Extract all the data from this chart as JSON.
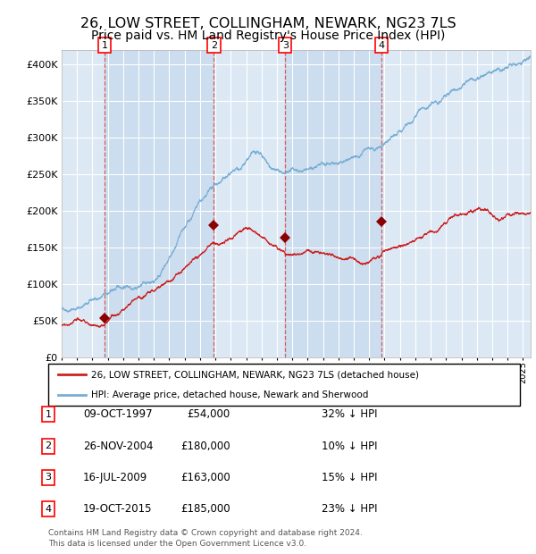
{
  "title": "26, LOW STREET, COLLINGHAM, NEWARK, NG23 7LS",
  "subtitle": "Price paid vs. HM Land Registry's House Price Index (HPI)",
  "title_fontsize": 11.5,
  "subtitle_fontsize": 10,
  "hpi_color": "#7aaed4",
  "price_color": "#cc2222",
  "marker_color": "#8b0000",
  "bg_color": "#dce9f5",
  "plot_bg": "#ffffff",
  "grid_color": "#ffffff",
  "ylim": [
    0,
    420000
  ],
  "yticks": [
    0,
    50000,
    100000,
    150000,
    200000,
    250000,
    300000,
    350000,
    400000
  ],
  "legend_label_red": "26, LOW STREET, COLLINGHAM, NEWARK, NG23 7LS (detached house)",
  "legend_label_blue": "HPI: Average price, detached house, Newark and Sherwood",
  "transactions": [
    {
      "num": 1,
      "date": "09-OCT-1997",
      "price": 54000,
      "hpi_pct": "32% ↓ HPI",
      "year_x": 1997.78
    },
    {
      "num": 2,
      "date": "26-NOV-2004",
      "price": 180000,
      "hpi_pct": "10% ↓ HPI",
      "year_x": 2004.9
    },
    {
      "num": 3,
      "date": "16-JUL-2009",
      "price": 163000,
      "hpi_pct": "15% ↓ HPI",
      "year_x": 2009.54
    },
    {
      "num": 4,
      "date": "19-OCT-2015",
      "price": 185000,
      "hpi_pct": "23% ↓ HPI",
      "year_x": 2015.8
    }
  ],
  "footnote1": "Contains HM Land Registry data © Crown copyright and database right 2024.",
  "footnote2": "This data is licensed under the Open Government Licence v3.0.",
  "xmin": 1995.0,
  "xmax": 2025.5
}
